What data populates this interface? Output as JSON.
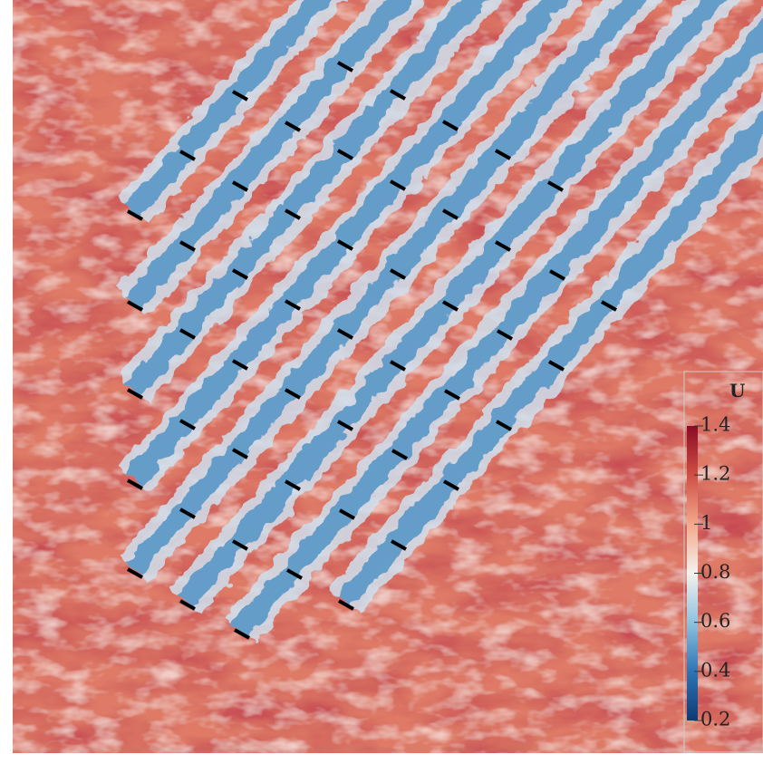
{
  "chart_data": {
    "type": "field",
    "colorbar": {
      "title": "U",
      "clim": [
        0.2,
        1.4
      ],
      "ticks": [
        0.2,
        0.4,
        0.6,
        0.8,
        1,
        1.2,
        1.4
      ],
      "colormap": [
        "#0d3b73",
        "#2f74b5",
        "#8fc2de",
        "#f4f1ee",
        "#f1a98c",
        "#cf4f45",
        "#8a0b24"
      ]
    }
  }
}
